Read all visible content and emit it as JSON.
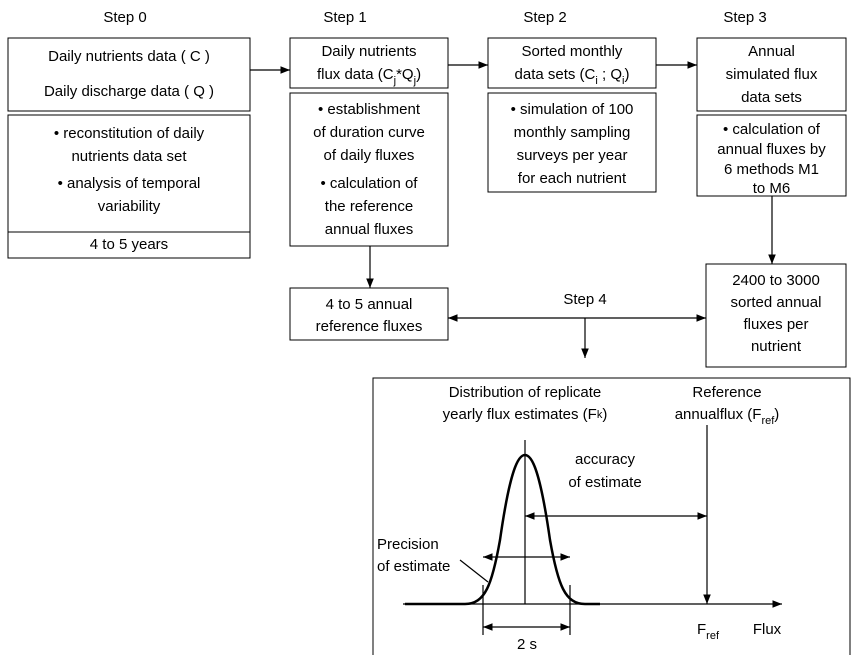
{
  "step_labels": [
    "Step 0",
    "Step 1",
    "Step 2",
    "Step 3"
  ],
  "boxes": [
    {
      "lines": [
        [
          "Daily nutrients data ( C )"
        ],
        [
          "Daily discharge data ( Q )"
        ]
      ]
    },
    {
      "lines": [
        [
          "• reconstitution of daily"
        ],
        [
          "nutrients data set"
        ],
        [
          "• analysis of temporal"
        ],
        [
          "variability"
        ]
      ]
    },
    {
      "lines": [
        [
          "4 to 5 years"
        ]
      ]
    },
    {
      "lines": [
        [
          "Daily nutrients"
        ],
        [
          "flux data (C",
          {
            "sub": "j"
          },
          "*Q",
          {
            "sub": "j"
          },
          ")"
        ]
      ]
    },
    {
      "lines": [
        [
          "• establishment"
        ],
        [
          "of duration curve"
        ],
        [
          "of daily fluxes"
        ],
        [
          "• calculation of"
        ],
        [
          "the reference"
        ],
        [
          "annual fluxes"
        ]
      ]
    },
    {
      "lines": [
        [
          "Sorted monthly"
        ],
        [
          "data sets (C",
          {
            "sub": "i"
          },
          " ; Q",
          {
            "sub": "i"
          },
          ")"
        ]
      ]
    },
    {
      "lines": [
        [
          "• simulation of 100"
        ],
        [
          "monthly sampling"
        ],
        [
          "surveys per year"
        ],
        [
          "for each nutrient"
        ]
      ]
    },
    {
      "lines": [
        [
          "Annual"
        ],
        [
          "simulated flux"
        ],
        [
          "data sets"
        ]
      ]
    },
    {
      "lines": [
        [
          "• calculation of"
        ],
        [
          "annual fluxes by"
        ],
        [
          "6 methods M1"
        ],
        [
          "to M6"
        ]
      ]
    },
    {
      "lines": [
        [
          "4 to 5 annual"
        ],
        [
          "reference fluxes"
        ]
      ]
    },
    {
      "lines": [
        [
          "2400 to 3000"
        ],
        [
          "sorted annual"
        ],
        [
          "fluxes per"
        ],
        [
          "nutrient"
        ]
      ]
    }
  ],
  "labels": [
    {
      "lines": [
        [
          "Step 4"
        ]
      ]
    },
    {
      "lines": [
        [
          "Distribution of replicate"
        ],
        [
          "yearly flux estimates (F",
          {
            "sup": "k"
          },
          ")"
        ]
      ]
    },
    {
      "lines": [
        [
          "Reference"
        ],
        [
          "annualflux (F",
          {
            "sub": "ref"
          },
          ")"
        ]
      ]
    },
    {
      "lines": [
        [
          "accuracy"
        ],
        [
          "of estimate"
        ]
      ]
    },
    {
      "lines": [
        [
          "Precision"
        ],
        [
          "of estimate"
        ]
      ]
    },
    {
      "lines": [
        [
          "F",
          {
            "sub": "ref"
          }
        ]
      ]
    },
    {
      "lines": [
        [
          "Flux"
        ]
      ]
    },
    {
      "lines": [
        [
          "2 s"
        ]
      ]
    }
  ]
}
